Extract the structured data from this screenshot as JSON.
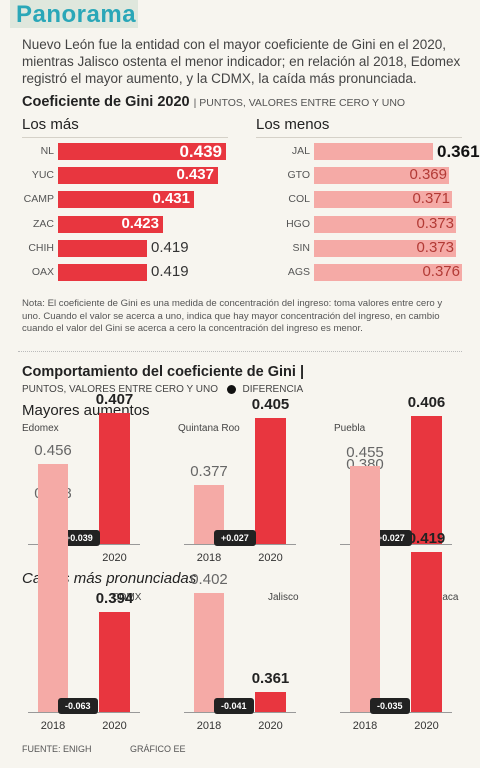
{
  "header": {
    "title": "Panorama",
    "intro": "Nuevo León fue la entidad con el mayor coeficiente de Gini en el 2020, mientras Jalisco ostenta el menor indicador; en relación al 2018, Edomex registró el mayor aumento, y la CDMX, la caída más pronunciada."
  },
  "section1": {
    "title": "Coeficiente de Gini 2020",
    "subtitle": "| PUNTOS, VALORES ENTRE CERO Y UNO",
    "note": "Nota: El coeficiente de Gini es una medida de concentración del ingreso: toma valores entre cero y uno. Cuando el valor se acerca a uno, indica que hay mayor concentración del ingreso, en cambio cuando el valor del Gini se acerca a cero la concentración del ingreso es menor."
  },
  "section2": {
    "title": "Comportamiento del coeficiente de Gini |",
    "subtitle": "PUNTOS, VALORES ENTRE CERO Y UNO",
    "legend": "DIFERENCIA",
    "increase_title": "Mayores aumentos",
    "decrease_title": "Caídas más pronunciadas"
  },
  "footer": {
    "source": "FUENTE: ENIGH",
    "credit": "GRÁFICO EE"
  },
  "colors": {
    "red_strong": "#e8363f",
    "pink_light": "#f5aaa6",
    "title_teal": "#2aa7b8",
    "title_band": "#dfe7dd"
  },
  "chart_data": [
    {
      "type": "bar",
      "orientation": "horizontal",
      "title": "Los más",
      "categories": [
        "NL",
        "YUC",
        "CAMP",
        "ZAC",
        "CHIH",
        "OAX"
      ],
      "values": [
        0.439,
        0.437,
        0.431,
        0.423,
        0.419,
        0.419
      ],
      "value_labels": [
        "0.439",
        "0.437",
        "0.431",
        "0.423",
        "0.419",
        "0.419"
      ]
    },
    {
      "type": "bar",
      "orientation": "horizontal",
      "title": "Los menos",
      "categories": [
        "JAL",
        "GTO",
        "COL",
        "HGO",
        "SIN",
        "AGS"
      ],
      "values": [
        0.361,
        0.369,
        0.371,
        0.373,
        0.373,
        0.376
      ],
      "value_labels": [
        "0.361",
        "0.369",
        "0.371",
        "0.373",
        "0.373",
        "0.376"
      ]
    },
    {
      "type": "bar",
      "group": "Mayores aumentos",
      "title": "Edomex",
      "categories": [
        "2018",
        "2020"
      ],
      "values": [
        0.368,
        0.407
      ],
      "value_labels": [
        "0.368",
        "0.407"
      ],
      "difference": "+0.039"
    },
    {
      "type": "bar",
      "group": "Mayores aumentos",
      "title": "Quintana Roo",
      "categories": [
        "2018",
        "2020"
      ],
      "values": [
        0.377,
        0.405
      ],
      "value_labels": [
        "0.377",
        "0.405"
      ],
      "difference": "+0.027"
    },
    {
      "type": "bar",
      "group": "Mayores aumentos",
      "title": "Puebla",
      "categories": [
        "2018",
        "2020"
      ],
      "values": [
        0.38,
        0.406
      ],
      "value_labels": [
        "0.380",
        "0.406"
      ],
      "difference": "+0.027"
    },
    {
      "type": "bar",
      "group": "Caídas más pronunciadas",
      "title": "CDMX",
      "categories": [
        "2018",
        "2020"
      ],
      "values": [
        0.456,
        0.394
      ],
      "value_labels": [
        "0.456",
        "0.394"
      ],
      "difference": "-0.063"
    },
    {
      "type": "bar",
      "group": "Caídas más pronunciadas",
      "title": "Jalisco",
      "categories": [
        "2018",
        "2020"
      ],
      "values": [
        0.402,
        0.361
      ],
      "value_labels": [
        "0.402",
        "0.361"
      ],
      "difference": "-0.041"
    },
    {
      "type": "bar",
      "group": "Caídas más pronunciadas",
      "title": "Oaxaca",
      "categories": [
        "2018",
        "2020"
      ],
      "values": [
        0.455,
        0.419
      ],
      "value_labels": [
        "0.455",
        "0.419"
      ],
      "difference": "-0.035"
    }
  ]
}
